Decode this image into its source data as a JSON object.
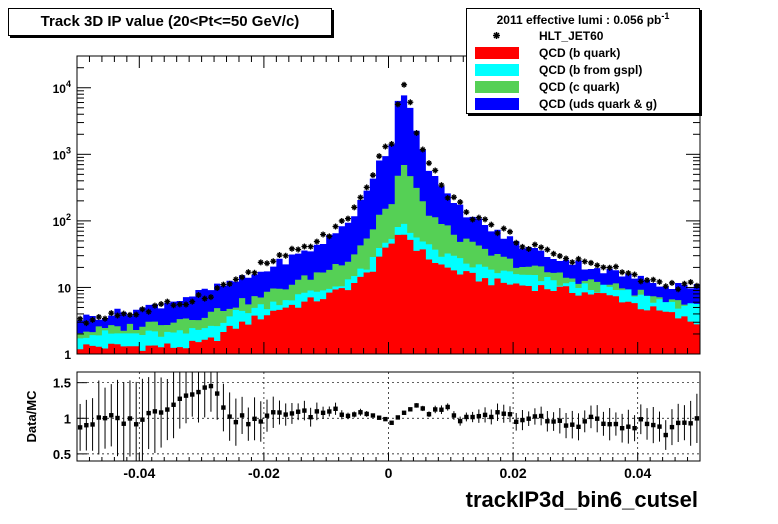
{
  "title": "Track 3D IP value (20<Pt<=50 GeV/c)",
  "legend": {
    "header_text": "2011 effective lumi : 0.056  pb",
    "header_sup": "-1",
    "entries": [
      {
        "label": "HLT_JET60",
        "kind": "marker",
        "color": "#000000"
      },
      {
        "label": "QCD (b quark)",
        "kind": "fill",
        "color": "#ff0000"
      },
      {
        "label": "QCD (b from gspl)",
        "kind": "fill",
        "color": "#00ffff"
      },
      {
        "label": "QCD (c quark)",
        "kind": "fill",
        "color": "#55d055"
      },
      {
        "label": "QCD (uds quark & g)",
        "kind": "fill",
        "color": "#0000ff"
      }
    ]
  },
  "xtitle": "trackIP3d_bin6_cutsel",
  "ratio_ylabel": "Data/MC",
  "chart_data": [
    {
      "type": "area",
      "subtype": "stacked-histogram",
      "yscale": "log",
      "xlim": [
        -0.05,
        0.05
      ],
      "ylim": [
        1,
        30000
      ],
      "y_ticks": [
        "1",
        "10",
        "10^2",
        "10^3",
        "10^4"
      ],
      "bins": 100,
      "x": [
        -0.049,
        -0.045,
        -0.041,
        -0.037,
        -0.033,
        -0.029,
        -0.025,
        -0.021,
        -0.017,
        -0.013,
        -0.009,
        -0.006,
        -0.004,
        -0.002,
        -0.001,
        0.0,
        0.001,
        0.002,
        0.003,
        0.004,
        0.006,
        0.009,
        0.013,
        0.017,
        0.021,
        0.025,
        0.029,
        0.033,
        0.037,
        0.041,
        0.045,
        0.049
      ],
      "series": [
        {
          "name": "QCD (b quark)",
          "color": "#ff0000",
          "values": [
            1.3,
            1.3,
            1.3,
            1.3,
            1.3,
            1.5,
            2.5,
            3.5,
            5,
            6,
            8,
            11,
            14,
            22,
            40,
            30,
            55,
            70,
            60,
            45,
            30,
            20,
            15,
            12,
            11,
            10,
            9,
            8,
            7,
            5,
            4,
            3
          ]
        },
        {
          "name": "QCD (b from gspl)",
          "color": "#00ffff",
          "values": [
            2,
            2,
            2,
            2,
            2,
            2.5,
            4,
            5,
            6.5,
            8,
            10,
            14,
            18,
            28,
            50,
            38,
            70,
            100,
            85,
            65,
            42,
            30,
            22,
            18,
            15,
            13,
            11,
            10,
            9,
            7,
            6,
            5
          ]
        },
        {
          "name": "QCD (c quark)",
          "color": "#55d055",
          "values": [
            2.2,
            2.4,
            2.6,
            3,
            3.4,
            4,
            5.5,
            7,
            10,
            14,
            20,
            30,
            50,
            90,
            180,
            120,
            300,
            750,
            600,
            350,
            150,
            80,
            45,
            30,
            22,
            18,
            14,
            12,
            10,
            8,
            6,
            5
          ]
        },
        {
          "name": "QCD (uds quark & g)",
          "color": "#0000ff",
          "values": [
            3.5,
            4,
            4.5,
            5.5,
            7,
            9,
            12,
            16,
            25,
            35,
            60,
            110,
            220,
            500,
            1500,
            700,
            3500,
            10000,
            8000,
            3500,
            800,
            250,
            120,
            70,
            45,
            32,
            25,
            20,
            16,
            13,
            11,
            11
          ]
        }
      ],
      "data_points": {
        "name": "HLT_JET60",
        "color": "#000000",
        "values": [
          3,
          4,
          4,
          5,
          6,
          8,
          12,
          20,
          30,
          40,
          70,
          120,
          240,
          520,
          1700,
          900,
          3000,
          12000,
          8500,
          3300,
          900,
          280,
          130,
          80,
          50,
          35,
          28,
          22,
          18,
          13,
          11,
          11
        ]
      }
    },
    {
      "type": "scatter",
      "subtype": "ratio",
      "xlim": [
        -0.05,
        0.05
      ],
      "ylim": [
        0.4,
        1.65
      ],
      "y_ticks": [
        "0.5",
        "1",
        "1.5"
      ],
      "x_ticks": [
        "-0.04",
        "-0.02",
        "0",
        "0.02",
        "0.04"
      ],
      "ylabel": "Data/MC",
      "x": [
        -0.049,
        -0.045,
        -0.041,
        -0.037,
        -0.033,
        -0.029,
        -0.025,
        -0.021,
        -0.017,
        -0.013,
        -0.009,
        -0.006,
        -0.004,
        -0.002,
        -0.001,
        0.0,
        0.001,
        0.002,
        0.003,
        0.004,
        0.006,
        0.009,
        0.013,
        0.017,
        0.021,
        0.025,
        0.029,
        0.033,
        0.037,
        0.041,
        0.045,
        0.049
      ],
      "values": [
        0.9,
        1.0,
        0.95,
        1.1,
        1.3,
        1.5,
        1.0,
        0.95,
        1.1,
        1.05,
        1.12,
        1.08,
        1.1,
        1.04,
        1.0,
        0.95,
        0.97,
        1.05,
        1.08,
        1.15,
        1.1,
        1.12,
        0.95,
        1.05,
        1.0,
        0.98,
        0.9,
        1.0,
        0.85,
        0.95,
        0.8,
        1.0
      ],
      "errors": [
        0.4,
        0.5,
        0.5,
        0.5,
        0.4,
        0.35,
        0.3,
        0.25,
        0.15,
        0.12,
        0.08,
        0.05,
        0.04,
        0.03,
        0.02,
        0.02,
        0.02,
        0.02,
        0.02,
        0.03,
        0.04,
        0.06,
        0.08,
        0.1,
        0.12,
        0.14,
        0.16,
        0.18,
        0.2,
        0.22,
        0.25,
        0.3
      ]
    }
  ]
}
